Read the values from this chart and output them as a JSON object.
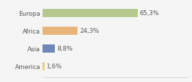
{
  "categories": [
    "Europa",
    "Africa",
    "Asia",
    "America"
  ],
  "values": [
    65.3,
    24.3,
    8.8,
    1.6
  ],
  "labels": [
    "65,3%",
    "24,3%",
    "8,8%",
    "1,6%"
  ],
  "bar_colors": [
    "#b5c98e",
    "#e8b47a",
    "#6f87b8",
    "#e8d07a"
  ],
  "background_color": "#f5f5f5",
  "xlim": [
    0,
    100
  ],
  "bar_height": 0.45,
  "label_fontsize": 6.5,
  "tick_fontsize": 6.5
}
